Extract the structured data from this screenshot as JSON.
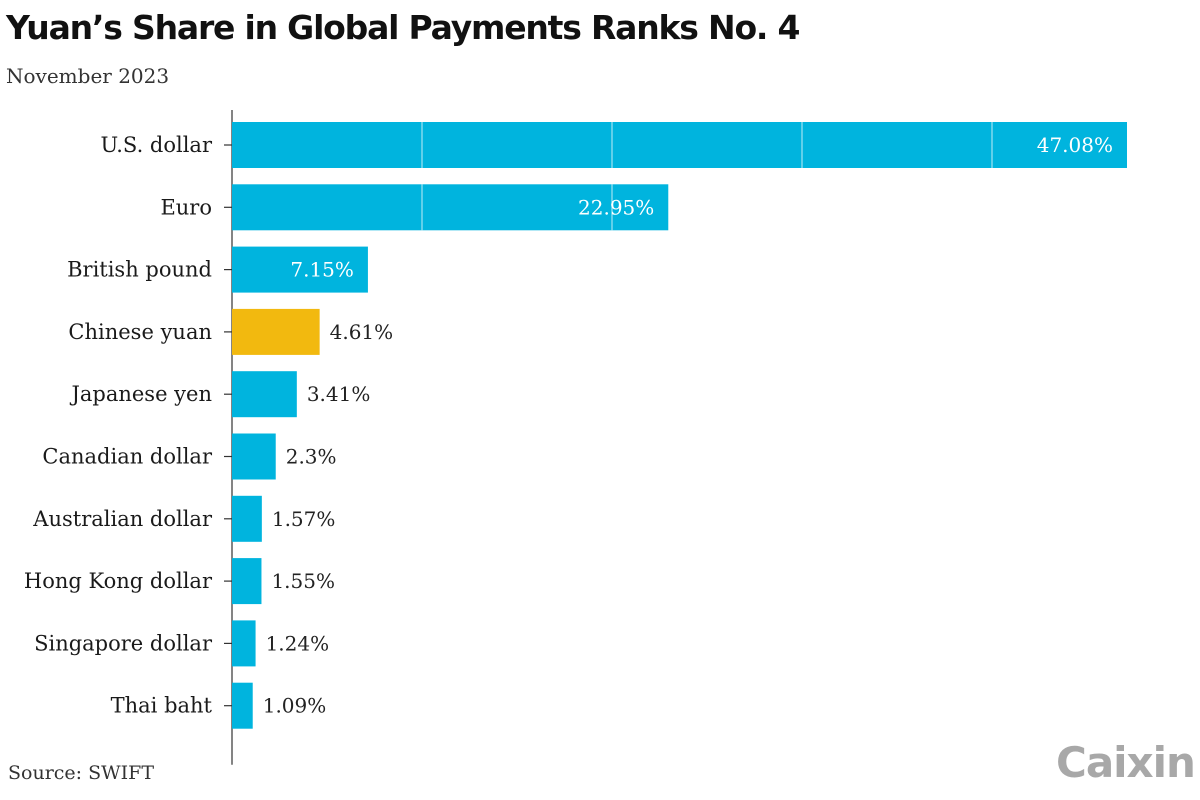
{
  "title": "Yuan’s Share in Global Payments Ranks No. 4",
  "subtitle": "November 2023",
  "source": "Source: SWIFT",
  "logo": "Caixin",
  "colors": {
    "bar": "#00b4de",
    "highlight": "#f2b90f",
    "axis": "#333333",
    "inside_label": "#ffffff",
    "outside_label": "#222222"
  },
  "chart_data": {
    "type": "bar",
    "orientation": "horizontal",
    "grid": false,
    "categories": [
      "U.S. dollar",
      "Euro",
      "British pound",
      "Chinese yuan",
      "Japanese yen",
      "Canadian dollar",
      "Australian dollar",
      "Hong Kong dollar",
      "Singapore dollar",
      "Thai baht"
    ],
    "values": [
      47.08,
      22.95,
      7.15,
      4.61,
      3.41,
      2.3,
      1.57,
      1.55,
      1.24,
      1.09
    ],
    "value_labels": [
      "47.08%",
      "22.95%",
      "7.15%",
      "4.61%",
      "3.41%",
      "2.3%",
      "1.57%",
      "1.55%",
      "1.24%",
      "1.09%"
    ],
    "highlight_category": "Chinese yuan",
    "xlim": [
      0,
      47.08
    ],
    "xlabel": "",
    "ylabel": ""
  }
}
